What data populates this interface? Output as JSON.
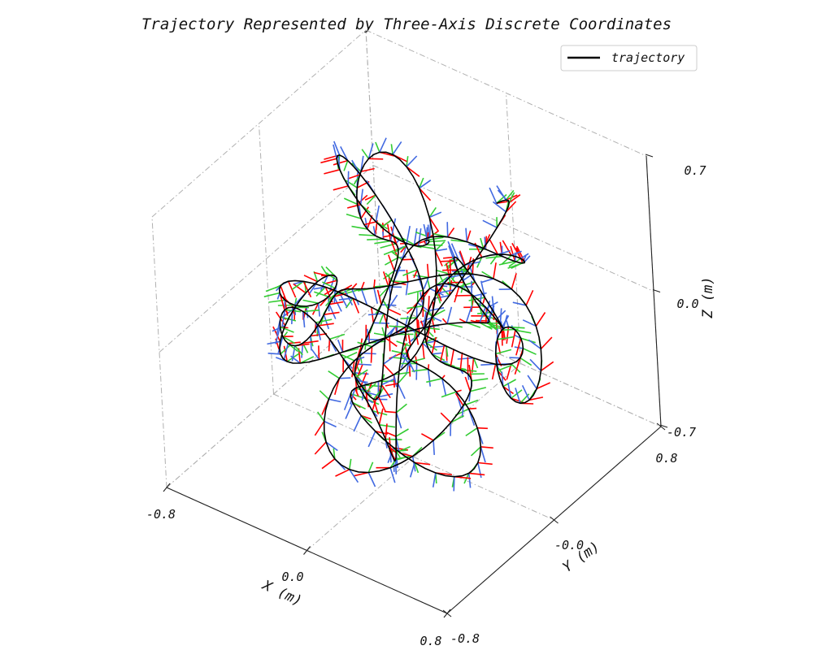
{
  "chart_data": {
    "type": "line",
    "title": "Trajectory Represented by Three-Axis Discrete Coordinates",
    "xlabel": "X (m)",
    "ylabel": "Y (m)",
    "zlabel": "Z (m)",
    "xlim": [
      -0.8,
      0.8
    ],
    "ylim": [
      -0.8,
      0.8
    ],
    "zlim": [
      -0.7,
      0.7
    ],
    "x_ticks": [
      "-0.8",
      "0.0",
      "0.8"
    ],
    "y_ticks": [
      "-0.8",
      "-0.0",
      "0.8"
    ],
    "z_ticks": [
      "-0.7",
      "0.0",
      "0.7"
    ],
    "grid": true,
    "legend": {
      "position": "top-right",
      "entries": [
        "trajectory"
      ]
    },
    "series": [
      {
        "name": "trajectory",
        "color": "#000000"
      }
    ],
    "frame_axes_colors": {
      "x": "#ff0000",
      "y": "#33cc33",
      "z": "#4169e1"
    }
  }
}
